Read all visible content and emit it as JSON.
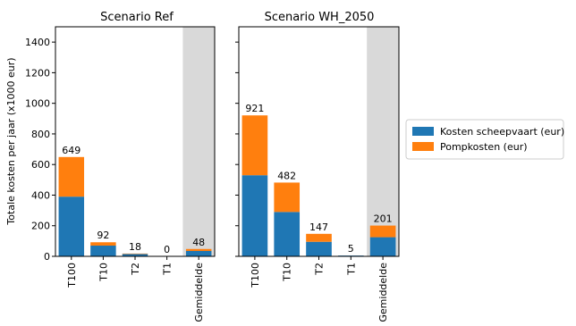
{
  "chart_data": {
    "type": "bar",
    "stacked": true,
    "ylabel": "Totale kosten per jaar (x1000 eur)",
    "ylim": [
      0,
      1500
    ],
    "yticks": [
      0,
      200,
      400,
      600,
      800,
      1000,
      1200,
      1400
    ],
    "highlighted_category": "Gemiddelde",
    "highlight_color": "#d9d9d9",
    "legend": {
      "placement": "right",
      "entries": [
        {
          "label": "Kosten scheepvaart (eur)",
          "color": "#1f77b4"
        },
        {
          "label": "Pompkosten (eur)",
          "color": "#ff7f0e"
        }
      ]
    },
    "panels": [
      {
        "title": "Scenario Ref",
        "categories": [
          "T100",
          "T10",
          "T2",
          "T1",
          "Gemiddelde"
        ],
        "series": [
          {
            "name": "Kosten scheepvaart (eur)",
            "color": "#1f77b4",
            "values": [
              390,
              70,
              15,
              0,
              35
            ]
          },
          {
            "name": "Pompkosten (eur)",
            "color": "#ff7f0e",
            "values": [
              259,
              22,
              3,
              0,
              13
            ]
          }
        ],
        "totals": [
          "649",
          "92",
          "18",
          "0",
          "48"
        ]
      },
      {
        "title": "Scenario WH_2050",
        "categories": [
          "T100",
          "T10",
          "T2",
          "T1",
          "Gemiddelde"
        ],
        "series": [
          {
            "name": "Kosten scheepvaart (eur)",
            "color": "#1f77b4",
            "values": [
              530,
              290,
              95,
              5,
              125
            ]
          },
          {
            "name": "Pompkosten (eur)",
            "color": "#ff7f0e",
            "values": [
              391,
              192,
              52,
              0,
              76
            ]
          }
        ],
        "totals": [
          "921",
          "482",
          "147",
          "5",
          "201"
        ]
      }
    ]
  }
}
